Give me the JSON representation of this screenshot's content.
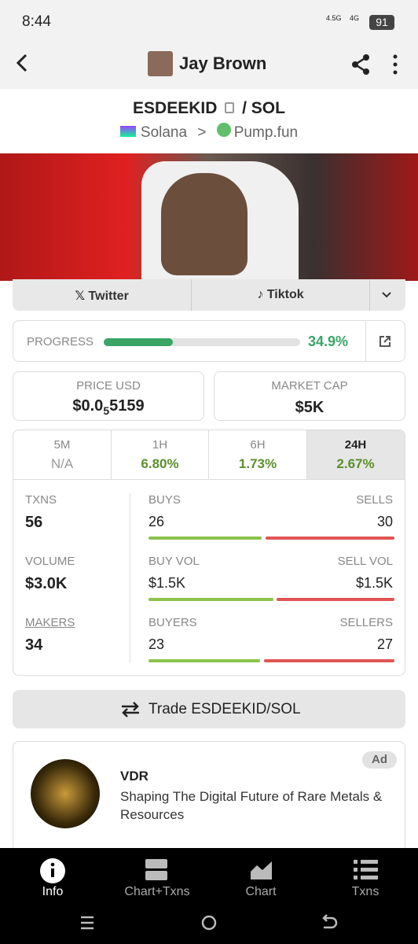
{
  "status": {
    "time": "8:44",
    "network_1": "4.5G",
    "network_2": "4G",
    "battery": "91"
  },
  "header": {
    "title": "Jay Brown"
  },
  "token": {
    "symbol": "ESDEEKID",
    "quote": "/ SOL",
    "chain": "Solana",
    "dex": "Pump.fun"
  },
  "links": [
    "Twitter",
    "Tiktok"
  ],
  "progress": {
    "label": "PROGRESS",
    "value": "34.9%"
  },
  "price": {
    "label": "PRICE USD",
    "prefix": "$0.0",
    "zeros": "5",
    "digits": "5159"
  },
  "market_cap": {
    "label": "MARKET CAP",
    "value": "$5K"
  },
  "timeframes": [
    {
      "label": "5M",
      "change": "N/A"
    },
    {
      "label": "1H",
      "change": "6.80%"
    },
    {
      "label": "6H",
      "change": "1.73%"
    },
    {
      "label": "24H",
      "change": "2.67%"
    }
  ],
  "stats": [
    {
      "total_label": "TXNS",
      "total": "56",
      "left_label": "BUYS",
      "left": "26",
      "right_label": "SELLS",
      "right": "30"
    },
    {
      "total_label": "VOLUME",
      "total": "$3.0K",
      "left_label": "BUY VOL",
      "left": "$1.5K",
      "right_label": "SELL VOL",
      "right": "$1.5K"
    },
    {
      "total_label": "MAKERS",
      "total": "34",
      "left_label": "BUYERS",
      "left": "23",
      "right_label": "SELLERS",
      "right": "27"
    }
  ],
  "trade_button": "Trade ESDEEKID/SOL",
  "ad": {
    "badge": "Ad",
    "name": "VDR",
    "description": "Shaping The Digital Future of Rare Metals & Resources"
  },
  "bottom_nav": [
    "Info",
    "Chart+Txns",
    "Chart",
    "Txns"
  ]
}
